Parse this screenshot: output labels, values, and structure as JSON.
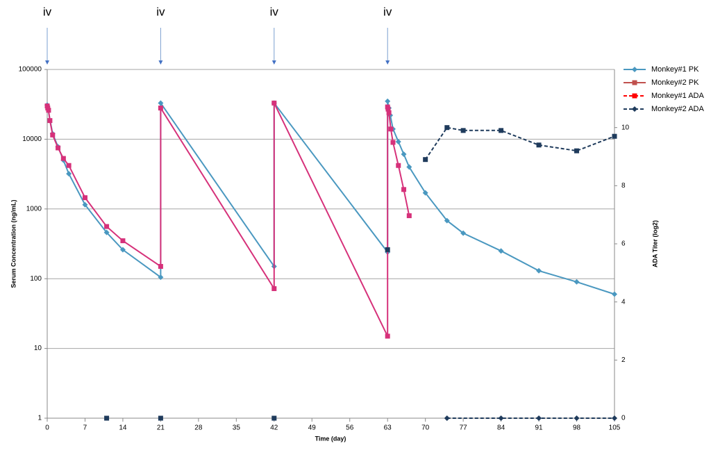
{
  "chart_data": {
    "type": "line",
    "xlabel": "Time (day)",
    "ylabel": "Serum Concentration (ng/mL)",
    "y2label": "ADA Titer (log2)",
    "xlim": [
      0,
      105
    ],
    "xticks": [
      0,
      7,
      14,
      21,
      28,
      35,
      42,
      49,
      56,
      63,
      70,
      77,
      84,
      91,
      98,
      105
    ],
    "ylim": [
      1,
      100000
    ],
    "yticks": [
      1,
      10,
      100,
      1000,
      10000,
      100000
    ],
    "log_y": true,
    "y2lim": [
      0,
      12
    ],
    "y2ticks": [
      0,
      2,
      4,
      6,
      8,
      10
    ],
    "grid": true,
    "legend": "right",
    "annotations": [
      {
        "text": "iv",
        "x": 0
      },
      {
        "text": "iv",
        "x": 21
      },
      {
        "text": "iv",
        "x": 42
      },
      {
        "text": "iv",
        "x": 63
      }
    ],
    "series": [
      {
        "name": "Monkey#1 PK",
        "color": "#4a98c0",
        "dash": false,
        "marker": "diamond",
        "x": [
          0,
          1,
          2,
          3,
          4,
          7,
          11,
          14,
          21,
          21,
          42,
          42,
          63,
          63,
          63.25,
          63.5,
          64,
          65,
          66,
          67,
          70,
          74,
          77,
          84,
          91,
          98,
          105
        ],
        "values": [
          31000,
          12000,
          7800,
          5000,
          3200,
          1150,
          460,
          260,
          105,
          33000,
          150,
          33000,
          240,
          35000,
          28000,
          22000,
          14000,
          9200,
          6100,
          4000,
          1700,
          680,
          450,
          250,
          130,
          90,
          60
        ]
      },
      {
        "name": "Monkey#2 PK",
        "color": "#d6317a",
        "legend_color": "#c0504d",
        "dash": false,
        "marker": "square",
        "x": [
          0,
          0.1,
          0.25,
          0.5,
          1,
          2,
          3,
          4,
          7,
          11,
          14,
          21,
          21,
          42,
          42,
          63,
          63,
          63.1,
          63.25,
          63.6,
          64,
          65,
          66,
          67
        ],
        "values": [
          30000,
          28000,
          26000,
          18500,
          11500,
          7500,
          5300,
          4200,
          1450,
          560,
          350,
          150,
          28000,
          72,
          33000,
          15,
          29000,
          27000,
          24000,
          14000,
          9000,
          4200,
          1900,
          800
        ]
      },
      {
        "name": "Monkey#1 ADA",
        "color": "#1f3b5c",
        "legend_color": "#ff0000",
        "dash": true,
        "marker": "square",
        "axis": "y2",
        "x": [
          11,
          11,
          21,
          21,
          42,
          42,
          63,
          63,
          70,
          74,
          77,
          84,
          91,
          98,
          105
        ],
        "values": [
          0,
          null,
          0,
          null,
          0,
          null,
          5.8,
          null,
          8.9,
          10,
          9.9,
          9.9,
          9.4,
          9.2,
          9.7
        ]
      },
      {
        "name": "Monkey#2 ADA",
        "color": "#1f3b5c",
        "dash": true,
        "marker": "diamond",
        "axis": "y2",
        "x": [
          74,
          84,
          91,
          98,
          105
        ],
        "values": [
          0,
          0,
          0,
          0,
          0
        ]
      }
    ]
  }
}
